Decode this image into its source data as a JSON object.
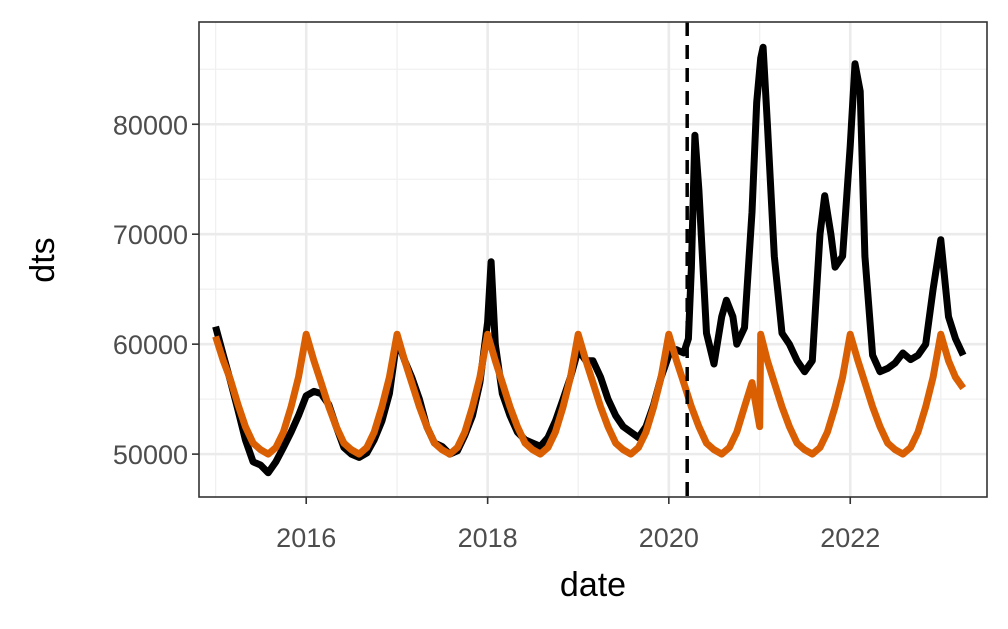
{
  "chart_data": {
    "type": "line",
    "xlabel": "date",
    "ylabel": "dts",
    "xlim": [
      "2014-10-26",
      "2023-07-06"
    ],
    "ylim": [
      46100,
      89300
    ],
    "x_ticks": [
      {
        "date": "2016-01-01",
        "label": "2016"
      },
      {
        "date": "2018-01-01",
        "label": "2018"
      },
      {
        "date": "2020-01-01",
        "label": "2020"
      },
      {
        "date": "2022-01-01",
        "label": "2022"
      }
    ],
    "y_ticks": [
      {
        "value": 50000,
        "label": "50000"
      },
      {
        "value": 60000,
        "label": "60000"
      },
      {
        "value": 70000,
        "label": "70000"
      },
      {
        "value": 80000,
        "label": "80000"
      }
    ],
    "x_minor_ticks": [
      "2015-01-01",
      "2017-01-01",
      "2019-01-01",
      "2021-01-01",
      "2023-01-01"
    ],
    "y_minor_ticks": [
      55000,
      65000,
      75000,
      85000
    ],
    "grid": true,
    "vline": {
      "date": "2020-03-15",
      "style": "dashed",
      "color": "#000000"
    },
    "series": [
      {
        "color": "#000000",
        "points": [
          [
            "2015-01-01",
            61600
          ],
          [
            "2015-02-01",
            59000
          ],
          [
            "2015-03-01",
            56700
          ],
          [
            "2015-04-01",
            54000
          ],
          [
            "2015-05-01",
            51300
          ],
          [
            "2015-06-01",
            49300
          ],
          [
            "2015-07-01",
            49000
          ],
          [
            "2015-08-01",
            48300
          ],
          [
            "2015-09-01",
            49300
          ],
          [
            "2015-10-01",
            50600
          ],
          [
            "2015-11-01",
            52000
          ],
          [
            "2015-12-01",
            53500
          ],
          [
            "2016-01-01",
            55300
          ],
          [
            "2016-02-01",
            55700
          ],
          [
            "2016-03-01",
            55500
          ],
          [
            "2016-04-01",
            54500
          ],
          [
            "2016-05-01",
            52500
          ],
          [
            "2016-06-01",
            50600
          ],
          [
            "2016-07-01",
            50000
          ],
          [
            "2016-08-01",
            49700
          ],
          [
            "2016-09-01",
            50100
          ],
          [
            "2016-10-01",
            51300
          ],
          [
            "2016-11-01",
            53000
          ],
          [
            "2016-12-01",
            55500
          ],
          [
            "2017-01-01",
            60500
          ],
          [
            "2017-02-01",
            58500
          ],
          [
            "2017-03-01",
            57000
          ],
          [
            "2017-04-01",
            55000
          ],
          [
            "2017-05-01",
            52500
          ],
          [
            "2017-06-01",
            51000
          ],
          [
            "2017-07-01",
            50700
          ],
          [
            "2017-08-01",
            50000
          ],
          [
            "2017-09-01",
            50300
          ],
          [
            "2017-10-01",
            51700
          ],
          [
            "2017-11-01",
            53500
          ],
          [
            "2017-12-01",
            56500
          ],
          [
            "2018-01-01",
            62000
          ],
          [
            "2018-01-15",
            67500
          ],
          [
            "2018-02-01",
            60000
          ],
          [
            "2018-03-01",
            55500
          ],
          [
            "2018-04-01",
            53500
          ],
          [
            "2018-05-01",
            52000
          ],
          [
            "2018-06-01",
            51300
          ],
          [
            "2018-07-01",
            51000
          ],
          [
            "2018-08-01",
            50700
          ],
          [
            "2018-09-01",
            51500
          ],
          [
            "2018-10-01",
            53000
          ],
          [
            "2018-11-01",
            55000
          ],
          [
            "2018-12-01",
            57000
          ],
          [
            "2019-01-01",
            59500
          ],
          [
            "2019-02-01",
            58500
          ],
          [
            "2019-03-01",
            58500
          ],
          [
            "2019-04-01",
            57000
          ],
          [
            "2019-05-01",
            55000
          ],
          [
            "2019-06-01",
            53500
          ],
          [
            "2019-07-01",
            52500
          ],
          [
            "2019-08-01",
            52000
          ],
          [
            "2019-09-01",
            51500
          ],
          [
            "2019-10-01",
            52500
          ],
          [
            "2019-11-01",
            54500
          ],
          [
            "2019-12-01",
            57000
          ],
          [
            "2020-01-01",
            59000
          ],
          [
            "2020-02-01",
            59500
          ],
          [
            "2020-03-01",
            59200
          ],
          [
            "2020-03-20",
            60500
          ],
          [
            "2020-04-01",
            67000
          ],
          [
            "2020-04-15",
            79000
          ],
          [
            "2020-05-01",
            74000
          ],
          [
            "2020-06-01",
            61000
          ],
          [
            "2020-07-01",
            58200
          ],
          [
            "2020-08-01",
            62500
          ],
          [
            "2020-08-20",
            64000
          ],
          [
            "2020-09-15",
            62500
          ],
          [
            "2020-10-01",
            60000
          ],
          [
            "2020-11-01",
            61500
          ],
          [
            "2020-12-01",
            72000
          ],
          [
            "2020-12-20",
            82000
          ],
          [
            "2021-01-05",
            86000
          ],
          [
            "2021-01-15",
            87000
          ],
          [
            "2021-02-01",
            80000
          ],
          [
            "2021-03-01",
            68000
          ],
          [
            "2021-04-01",
            61000
          ],
          [
            "2021-05-01",
            60000
          ],
          [
            "2021-06-01",
            58500
          ],
          [
            "2021-07-01",
            57500
          ],
          [
            "2021-08-01",
            58500
          ],
          [
            "2021-09-01",
            70000
          ],
          [
            "2021-09-20",
            73500
          ],
          [
            "2021-10-15",
            70000
          ],
          [
            "2021-11-01",
            67000
          ],
          [
            "2021-12-01",
            68000
          ],
          [
            "2022-01-01",
            78000
          ],
          [
            "2022-01-20",
            85500
          ],
          [
            "2022-02-10",
            83000
          ],
          [
            "2022-03-01",
            68000
          ],
          [
            "2022-04-01",
            59000
          ],
          [
            "2022-05-01",
            57500
          ],
          [
            "2022-06-01",
            57800
          ],
          [
            "2022-07-01",
            58300
          ],
          [
            "2022-08-01",
            59200
          ],
          [
            "2022-09-01",
            58600
          ],
          [
            "2022-10-01",
            59000
          ],
          [
            "2022-11-01",
            60000
          ],
          [
            "2022-12-01",
            65000
          ],
          [
            "2023-01-01",
            69500
          ],
          [
            "2023-02-01",
            62500
          ],
          [
            "2023-03-01",
            60500
          ],
          [
            "2023-04-01",
            59000
          ]
        ]
      },
      {
        "color": "#d95f02",
        "points": [
          [
            "2015-01-01",
            60700
          ],
          [
            "2015-02-01",
            58500
          ],
          [
            "2015-03-01",
            56800
          ],
          [
            "2015-04-01",
            54500
          ],
          [
            "2015-05-01",
            52500
          ],
          [
            "2015-06-01",
            51000
          ],
          [
            "2015-07-01",
            50400
          ],
          [
            "2015-08-01",
            50000
          ],
          [
            "2015-09-01",
            50600
          ],
          [
            "2015-10-01",
            52000
          ],
          [
            "2015-11-01",
            54300
          ],
          [
            "2015-12-01",
            57000
          ],
          [
            "2016-01-01",
            60900
          ],
          [
            "2016-02-01",
            58500
          ],
          [
            "2016-03-01",
            56500
          ],
          [
            "2016-04-01",
            54300
          ],
          [
            "2016-05-01",
            52500
          ],
          [
            "2016-06-01",
            51000
          ],
          [
            "2016-07-01",
            50400
          ],
          [
            "2016-08-01",
            50000
          ],
          [
            "2016-09-01",
            50600
          ],
          [
            "2016-10-01",
            52000
          ],
          [
            "2016-11-01",
            54300
          ],
          [
            "2016-12-01",
            57000
          ],
          [
            "2017-01-01",
            60900
          ],
          [
            "2017-02-01",
            58500
          ],
          [
            "2017-03-01",
            56500
          ],
          [
            "2017-04-01",
            54300
          ],
          [
            "2017-05-01",
            52500
          ],
          [
            "2017-06-01",
            51000
          ],
          [
            "2017-07-01",
            50400
          ],
          [
            "2017-08-01",
            50000
          ],
          [
            "2017-09-01",
            50600
          ],
          [
            "2017-10-01",
            52000
          ],
          [
            "2017-11-01",
            54300
          ],
          [
            "2017-12-01",
            57000
          ],
          [
            "2018-01-01",
            60900
          ],
          [
            "2018-02-01",
            58500
          ],
          [
            "2018-03-01",
            56500
          ],
          [
            "2018-04-01",
            54300
          ],
          [
            "2018-05-01",
            52500
          ],
          [
            "2018-06-01",
            51000
          ],
          [
            "2018-07-01",
            50400
          ],
          [
            "2018-08-01",
            50000
          ],
          [
            "2018-09-01",
            50600
          ],
          [
            "2018-10-01",
            52000
          ],
          [
            "2018-11-01",
            54300
          ],
          [
            "2018-12-01",
            57000
          ],
          [
            "2019-01-01",
            60900
          ],
          [
            "2019-02-01",
            58500
          ],
          [
            "2019-03-01",
            56500
          ],
          [
            "2019-04-01",
            54300
          ],
          [
            "2019-05-01",
            52500
          ],
          [
            "2019-06-01",
            51000
          ],
          [
            "2019-07-01",
            50400
          ],
          [
            "2019-08-01",
            50000
          ],
          [
            "2019-09-01",
            50600
          ],
          [
            "2019-10-01",
            52000
          ],
          [
            "2019-11-01",
            54300
          ],
          [
            "2019-12-01",
            57000
          ],
          [
            "2020-01-01",
            60900
          ],
          [
            "2020-02-01",
            58500
          ],
          [
            "2020-03-01",
            56500
          ],
          [
            "2020-04-01",
            54300
          ],
          [
            "2020-05-01",
            52500
          ],
          [
            "2020-06-01",
            51000
          ],
          [
            "2020-07-01",
            50400
          ],
          [
            "2020-08-01",
            50000
          ],
          [
            "2020-09-01",
            50600
          ],
          [
            "2020-10-01",
            52000
          ],
          [
            "2020-11-01",
            54300
          ],
          [
            "2020-12-01",
            56500
          ],
          [
            "2021-01-01",
            52500
          ],
          [
            "2021-01-05",
            60900
          ],
          [
            "2021-02-01",
            58500
          ],
          [
            "2021-03-01",
            56500
          ],
          [
            "2021-04-01",
            54300
          ],
          [
            "2021-05-01",
            52500
          ],
          [
            "2021-06-01",
            51000
          ],
          [
            "2021-07-01",
            50400
          ],
          [
            "2021-08-01",
            50000
          ],
          [
            "2021-09-01",
            50600
          ],
          [
            "2021-10-01",
            52000
          ],
          [
            "2021-11-01",
            54300
          ],
          [
            "2021-12-01",
            57000
          ],
          [
            "2022-01-01",
            60900
          ],
          [
            "2022-02-01",
            58500
          ],
          [
            "2022-03-01",
            56500
          ],
          [
            "2022-04-01",
            54300
          ],
          [
            "2022-05-01",
            52500
          ],
          [
            "2022-06-01",
            51000
          ],
          [
            "2022-07-01",
            50400
          ],
          [
            "2022-08-01",
            50000
          ],
          [
            "2022-09-01",
            50600
          ],
          [
            "2022-10-01",
            52000
          ],
          [
            "2022-11-01",
            54300
          ],
          [
            "2022-12-01",
            57000
          ],
          [
            "2023-01-01",
            60900
          ],
          [
            "2023-02-01",
            58500
          ],
          [
            "2023-03-01",
            57000
          ],
          [
            "2023-04-01",
            56000
          ]
        ]
      }
    ]
  }
}
